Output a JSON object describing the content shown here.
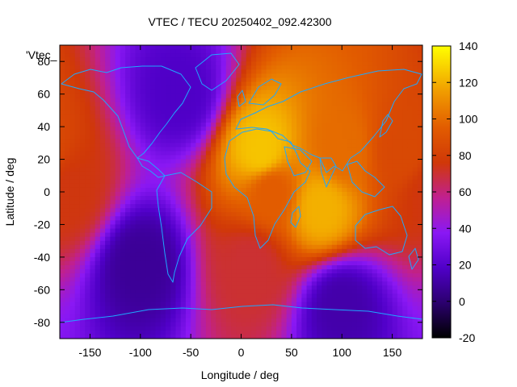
{
  "chart_data": {
    "type": "heatmap",
    "title": "VTEC / TECU 20250402_092.42300",
    "xlabel": "Longitude / deg",
    "ylabel": "Latitude / deg",
    "key_label": "'Vtec_",
    "xlim": [
      -180,
      180
    ],
    "ylim": [
      -90,
      90
    ],
    "x_ticks": [
      -150,
      -100,
      -50,
      0,
      50,
      100,
      150
    ],
    "y_ticks": [
      80,
      60,
      40,
      20,
      0,
      -20,
      -40,
      -60,
      -80
    ],
    "colorbar": {
      "range": [
        -20,
        140
      ],
      "ticks": [
        140,
        120,
        100,
        80,
        60,
        40,
        20,
        0,
        -20
      ],
      "palette": "black-blue-violet-red-orange-yellow"
    },
    "grid": false,
    "overlay": "coastlines",
    "coastline_color": "#1ea8ff",
    "sampled_values": [
      {
        "lon": -170,
        "lat": 0,
        "vtec": 75
      },
      {
        "lon": -100,
        "lat": -45,
        "vtec": 8
      },
      {
        "lon": -60,
        "lat": 60,
        "vtec": 18
      },
      {
        "lon": 20,
        "lat": 25,
        "vtec": 125
      },
      {
        "lon": 30,
        "lat": 0,
        "vtec": 95
      },
      {
        "lon": 80,
        "lat": -10,
        "vtec": 120
      },
      {
        "lon": 100,
        "lat": 25,
        "vtec": 100
      },
      {
        "lon": 160,
        "lat": 25,
        "vtec": 85
      },
      {
        "lon": 10,
        "lat": -45,
        "vtec": 70
      },
      {
        "lon": 100,
        "lat": -70,
        "vtec": 12
      }
    ]
  }
}
